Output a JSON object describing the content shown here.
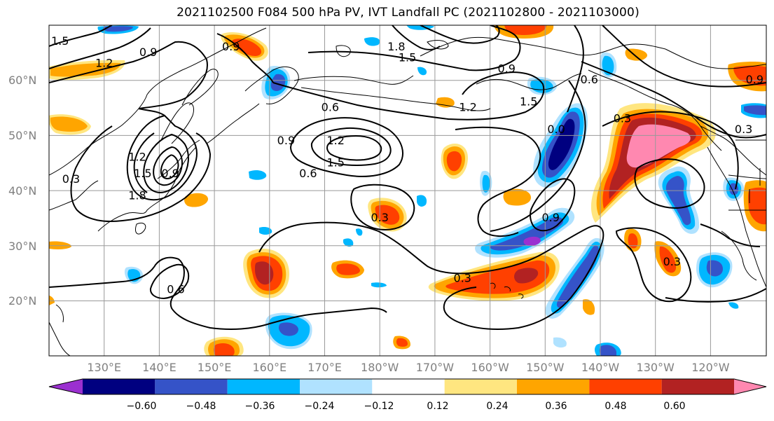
{
  "title": "2021102500 F084 500 hPa PV, IVT Landfall PC (2021102800 - 2021103000)",
  "lat_labels": [
    "60°N",
    "50°N",
    "40°N",
    "30°N",
    "20°N"
  ],
  "lon_labels": [
    "130°E",
    "140°E",
    "150°E",
    "160°E",
    "170°E",
    "180°W",
    "170°W",
    "160°W",
    "150°W",
    "140°W",
    "130°W",
    "120°W"
  ],
  "colorbar": {
    "ticks": [
      "−0.60",
      "−0.48",
      "−0.36",
      "−0.24",
      "−0.12",
      "0.12",
      "0.24",
      "0.36",
      "0.48",
      "0.60"
    ],
    "bins": [
      "#9b30d0",
      "#000080",
      "#3553c8",
      "#00b7ff",
      "#b0e2ff",
      "#ffffff",
      "#ffe680",
      "#ffa500",
      "#ff4000",
      "#b22222",
      "#ff88b0"
    ]
  },
  "contour_labels": [
    {
      "text": "1.5",
      "lon": 122,
      "lat": 67
    },
    {
      "text": "1.2",
      "lon": 130,
      "lat": 63
    },
    {
      "text": "0.9",
      "lon": 138,
      "lat": 65
    },
    {
      "text": "0.9",
      "lon": 153,
      "lat": 66
    },
    {
      "text": "1.8",
      "lon": 183,
      "lat": 66
    },
    {
      "text": "1.5",
      "lon": 185,
      "lat": 64
    },
    {
      "text": "0.9",
      "lon": 203,
      "lat": 62
    },
    {
      "text": "0.6",
      "lon": 171,
      "lat": 55
    },
    {
      "text": "1.2",
      "lon": 196,
      "lat": 55
    },
    {
      "text": "1.5",
      "lon": 207,
      "lat": 56
    },
    {
      "text": "0.0",
      "lon": 212,
      "lat": 51
    },
    {
      "text": "0.6",
      "lon": 218,
      "lat": 60
    },
    {
      "text": "0.9",
      "lon": 248,
      "lat": 60
    },
    {
      "text": "0.3",
      "lon": 224,
      "lat": 53
    },
    {
      "text": "0.9",
      "lon": 163,
      "lat": 49
    },
    {
      "text": "1.2",
      "lon": 172,
      "lat": 49
    },
    {
      "text": "1.5",
      "lon": 172,
      "lat": 45
    },
    {
      "text": "0.6",
      "lon": 167,
      "lat": 43
    },
    {
      "text": "1.2",
      "lon": 136,
      "lat": 46
    },
    {
      "text": "1.5",
      "lon": 137,
      "lat": 43
    },
    {
      "text": "1.8",
      "lon": 136,
      "lat": 39
    },
    {
      "text": "0.9",
      "lon": 142,
      "lat": 43
    },
    {
      "text": "0.3",
      "lon": 124,
      "lat": 42
    },
    {
      "text": "0.3",
      "lon": 180,
      "lat": 35
    },
    {
      "text": "0.9",
      "lon": 211,
      "lat": 35
    },
    {
      "text": "0.3",
      "lon": 195,
      "lat": 24
    },
    {
      "text": "0.6",
      "lon": 143,
      "lat": 22
    },
    {
      "text": "0.3",
      "lon": 233,
      "lat": 27
    },
    {
      "text": "0.3",
      "lon": 246,
      "lat": 51
    }
  ],
  "legend_colors": {
    "pos1": "#ffe680",
    "pos2": "#ffa500",
    "pos3": "#ff4000",
    "pos4": "#b22222",
    "pos5": "#ff88b0",
    "neg1": "#b0e2ff",
    "neg2": "#00b7ff",
    "neg3": "#3553c8",
    "neg4": "#000080",
    "neg5": "#9b30d0"
  }
}
